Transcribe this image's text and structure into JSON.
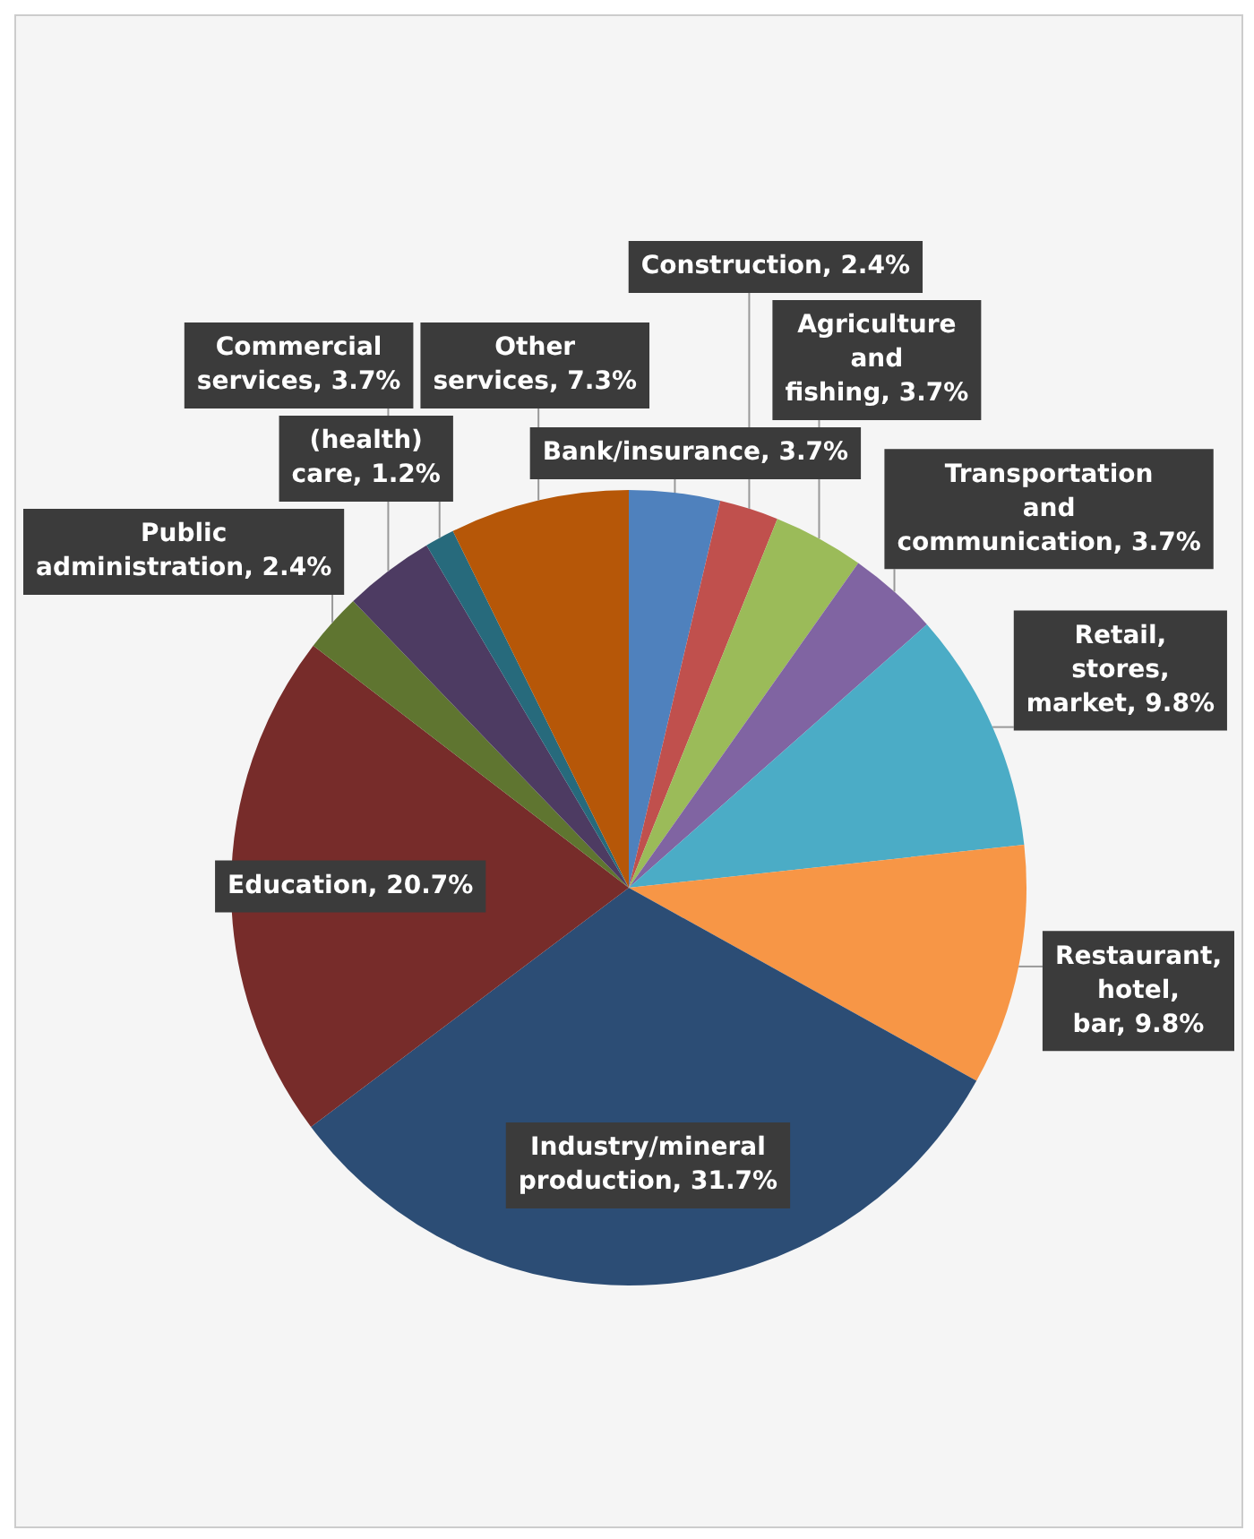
{
  "chart_data": {
    "type": "pie",
    "categories": [
      "Bank/insurance",
      "Construction",
      "Agriculture and fishing",
      "Transportation and communication",
      "Retail, stores, market",
      "Restaurant, hotel, bar",
      "Industry/mineral production",
      "Education",
      "Public administration",
      "Commercial services",
      "(health) care",
      "Other services"
    ],
    "values": [
      3.7,
      2.4,
      3.7,
      3.7,
      9.8,
      9.8,
      31.7,
      20.7,
      2.4,
      3.7,
      1.2,
      7.3
    ],
    "value_labels": [
      "3.7%",
      "2.4%",
      "3.7%",
      "3.7%",
      "9.8%",
      "9.8%",
      "31.7%",
      "20.7%",
      "2.4%",
      "3.7%",
      "1.2%",
      "7.3%"
    ],
    "colors": [
      "#4f81bd",
      "#c0504d",
      "#9bbb59",
      "#8064a2",
      "#4bacc6",
      "#f79646",
      "#2c4d75",
      "#772c2a",
      "#5f7530",
      "#4d3b62",
      "#276a7c",
      "#b65708"
    ],
    "legend": false
  }
}
